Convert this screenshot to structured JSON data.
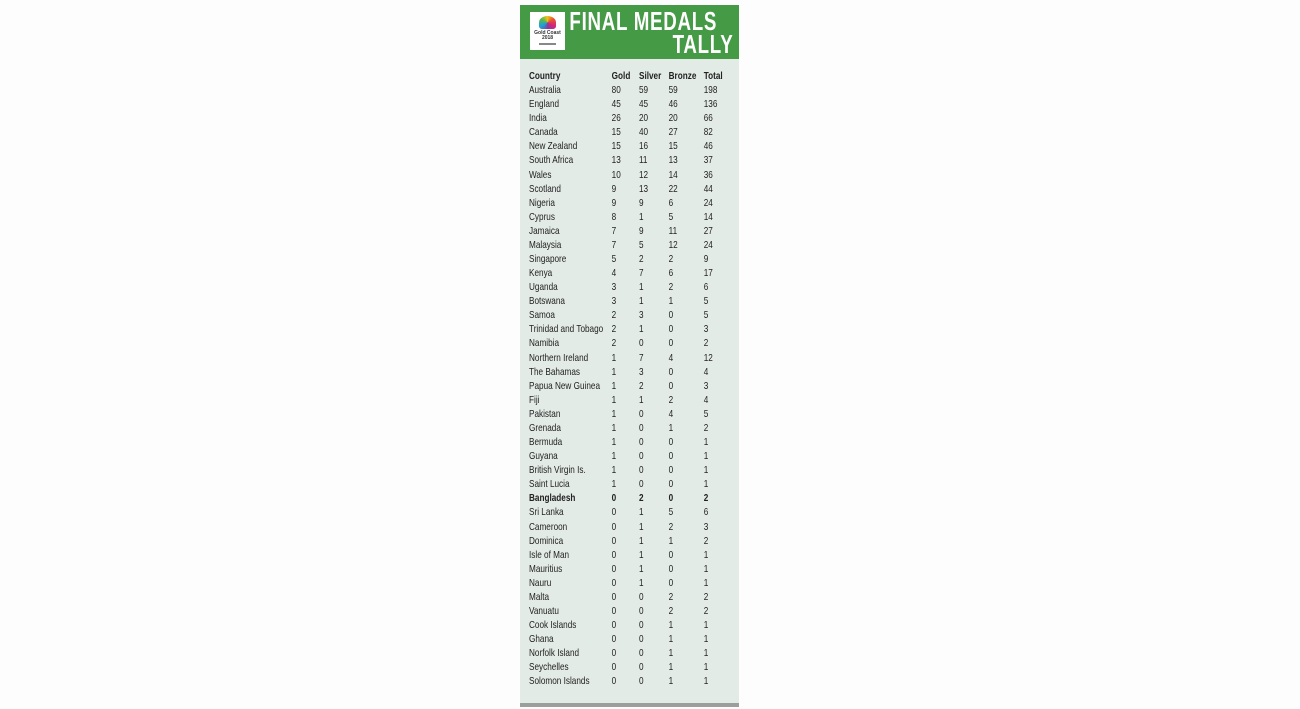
{
  "header": {
    "title_line1": "FINAL MEDALS",
    "title_line2": "TALLY",
    "logo_text": "Gold Coast 2018",
    "accent_color": "#459a45",
    "background_color": "#e3ebe6"
  },
  "table": {
    "columns": [
      "Country",
      "Gold",
      "Silver",
      "Bronze",
      "Total"
    ],
    "highlighted_row": "Bangladesh",
    "rows": [
      [
        "Australia",
        "80",
        "59",
        "59",
        "198"
      ],
      [
        "England",
        "45",
        "45",
        "46",
        "136"
      ],
      [
        "India",
        "26",
        "20",
        "20",
        "66"
      ],
      [
        "Canada",
        "15",
        "40",
        "27",
        "82"
      ],
      [
        "New Zealand",
        "15",
        "16",
        "15",
        "46"
      ],
      [
        "South Africa",
        "13",
        "11",
        "13",
        "37"
      ],
      [
        "Wales",
        "10",
        "12",
        "14",
        "36"
      ],
      [
        "Scotland",
        "9",
        "13",
        "22",
        "44"
      ],
      [
        "Nigeria",
        "9",
        "9",
        "6",
        "24"
      ],
      [
        "Cyprus",
        "8",
        "1",
        "5",
        "14"
      ],
      [
        "Jamaica",
        "7",
        "9",
        "11",
        "27"
      ],
      [
        "Malaysia",
        "7",
        "5",
        "12",
        "24"
      ],
      [
        "Singapore",
        "5",
        "2",
        "2",
        "9"
      ],
      [
        "Kenya",
        "4",
        "7",
        "6",
        "17"
      ],
      [
        "Uganda",
        "3",
        "1",
        "2",
        "6"
      ],
      [
        "Botswana",
        "3",
        "1",
        "1",
        "5"
      ],
      [
        "Samoa",
        "2",
        "3",
        "0",
        "5"
      ],
      [
        "Trinidad and Tobago",
        "2",
        "1",
        "0",
        "3"
      ],
      [
        "Namibia",
        "2",
        "0",
        "0",
        "2"
      ],
      [
        "Northern Ireland",
        "1",
        "7",
        "4",
        "12"
      ],
      [
        "The Bahamas",
        "1",
        "3",
        "0",
        "4"
      ],
      [
        "Papua New Guinea",
        "1",
        "2",
        "0",
        "3"
      ],
      [
        "Fiji",
        "1",
        "1",
        "2",
        "4"
      ],
      [
        "Pakistan",
        "1",
        "0",
        "4",
        "5"
      ],
      [
        "Grenada",
        "1",
        "0",
        "1",
        "2"
      ],
      [
        "Bermuda",
        "1",
        "0",
        "0",
        "1"
      ],
      [
        "Guyana",
        "1",
        "0",
        "0",
        "1"
      ],
      [
        "British Virgin Is.",
        "1",
        "0",
        "0",
        "1"
      ],
      [
        "Saint Lucia",
        "1",
        "0",
        "0",
        "1"
      ],
      [
        "Bangladesh",
        "0",
        "2",
        "0",
        "2"
      ],
      [
        "Sri Lanka",
        "0",
        "1",
        "5",
        "6"
      ],
      [
        "Cameroon",
        "0",
        "1",
        "2",
        "3"
      ],
      [
        "Dominica",
        "0",
        "1",
        "1",
        "2"
      ],
      [
        "Isle of Man",
        "0",
        "1",
        "0",
        "1"
      ],
      [
        "Mauritius",
        "0",
        "1",
        "0",
        "1"
      ],
      [
        "Nauru",
        "0",
        "1",
        "0",
        "1"
      ],
      [
        "Malta",
        "0",
        "0",
        "2",
        "2"
      ],
      [
        "Vanuatu",
        "0",
        "0",
        "2",
        "2"
      ],
      [
        "Cook Islands",
        "0",
        "0",
        "1",
        "1"
      ],
      [
        "Ghana",
        "0",
        "0",
        "1",
        "1"
      ],
      [
        "Norfolk Island",
        "0",
        "0",
        "1",
        "1"
      ],
      [
        "Seychelles",
        "0",
        "0",
        "1",
        "1"
      ],
      [
        "Solomon Islands",
        "0",
        "0",
        "1",
        "1"
      ]
    ]
  }
}
